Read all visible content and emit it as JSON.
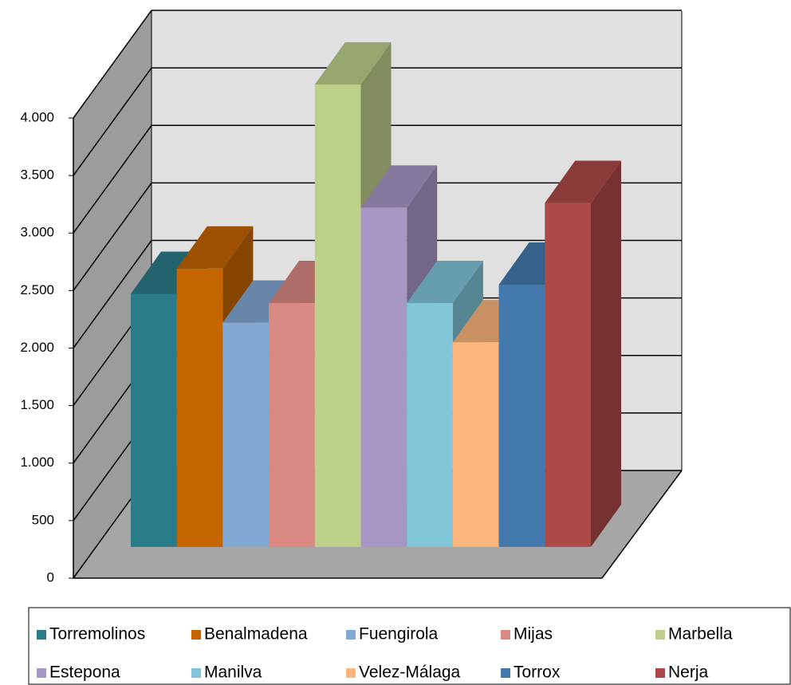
{
  "chart_data": {
    "type": "bar3d",
    "series": [
      {
        "name": "Torremolinos",
        "color": "#2b7c8a",
        "values": [
          2200
        ]
      },
      {
        "name": "Benalmadena",
        "color": "#c46500",
        "values": [
          2420
        ]
      },
      {
        "name": "Fuengirola",
        "color": "#82a8d4",
        "values": [
          1950
        ]
      },
      {
        "name": "Mijas",
        "color": "#d98882",
        "values": [
          2120
        ]
      },
      {
        "name": "Marbella",
        "color": "#bdd08a",
        "values": [
          4020
        ]
      },
      {
        "name": "Estepona",
        "color": "#a797c5",
        "values": [
          2950
        ]
      },
      {
        "name": "Manilva",
        "color": "#80c5d8",
        "values": [
          2120
        ]
      },
      {
        "name": "Velez-Málaga",
        "color": "#fbb47c",
        "values": [
          1780
        ]
      },
      {
        "name": "Torrox",
        "color": "#4479ad",
        "values": [
          2280
        ]
      },
      {
        "name": "Nerja",
        "color": "#ad4a47",
        "values": [
          2990
        ]
      }
    ],
    "ylim": [
      0,
      4000
    ],
    "yticks": [
      0,
      500,
      {
        "value": 1000,
        "label": "1.000"
      },
      {
        "value": 1500,
        "label": "1.500"
      },
      {
        "value": 2000,
        "label": "2.000"
      },
      {
        "value": 2500,
        "label": "2.500"
      },
      {
        "value": 3000,
        "label": "3.000"
      },
      {
        "value": 3500,
        "label": "3.500"
      },
      {
        "value": 4000,
        "label": "4.000"
      }
    ],
    "grid": true,
    "legend": "bottom"
  }
}
